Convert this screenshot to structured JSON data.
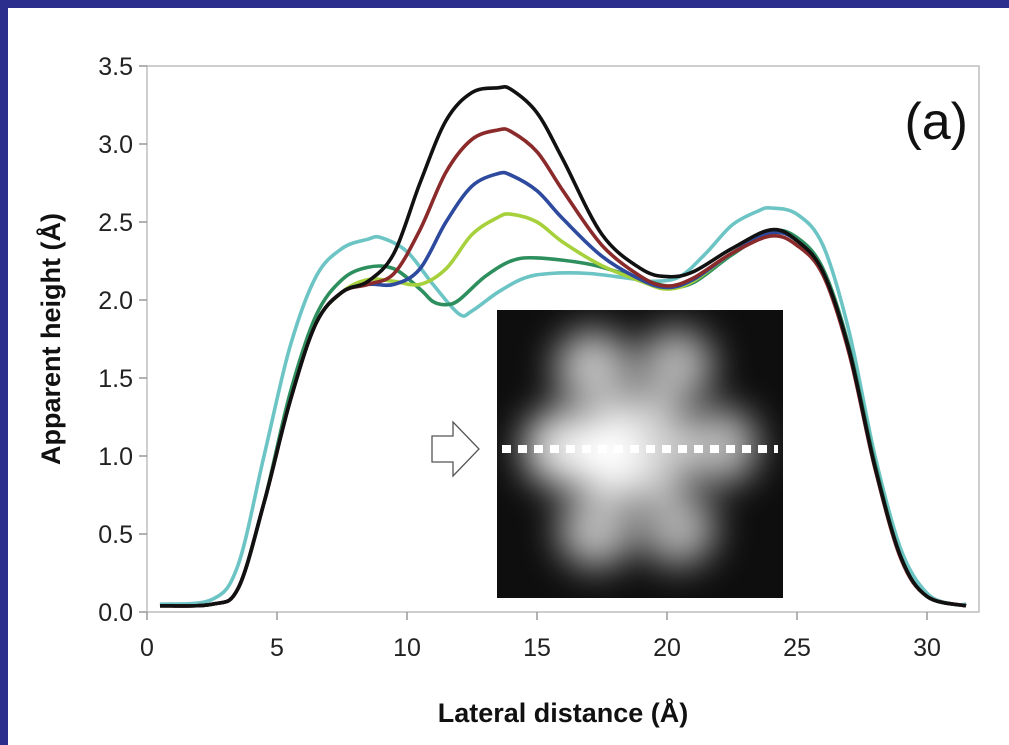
{
  "chart_data": {
    "type": "line",
    "xlabel": "Lateral distance (Å)",
    "ylabel": "Apparent height (Å)",
    "panel_label": "(a)",
    "xlim": [
      0,
      32
    ],
    "ylim": [
      0,
      3.5
    ],
    "xticks": [
      "0",
      "5",
      "10",
      "15",
      "20",
      "25",
      "30"
    ],
    "yticks": [
      "0.0",
      "0.5",
      "1.0",
      "1.5",
      "2.0",
      "2.5",
      "3.0",
      "3.5"
    ],
    "grid": false,
    "legend": "none",
    "series": [
      {
        "color": "#6cc4c4",
        "x": [
          0.5,
          2.5,
          3.5,
          4.5,
          5.5,
          6.5,
          7.5,
          8.5,
          9.0,
          10.0,
          11.0,
          12.0,
          12.5,
          13.5,
          14.5,
          15.5,
          17.0,
          18.5,
          19.5,
          20.5,
          21.5,
          22.5,
          23.5,
          24.0,
          25.0,
          26.0,
          27.0,
          28.0,
          29.0,
          30.0,
          31.0,
          31.5
        ],
        "y": [
          0.05,
          0.08,
          0.3,
          1.0,
          1.7,
          2.15,
          2.33,
          2.39,
          2.4,
          2.31,
          2.1,
          1.91,
          1.93,
          2.05,
          2.14,
          2.17,
          2.17,
          2.14,
          2.12,
          2.15,
          2.3,
          2.48,
          2.57,
          2.59,
          2.55,
          2.35,
          1.8,
          1.0,
          0.4,
          0.12,
          0.05,
          0.05
        ]
      },
      {
        "color": "#2e8f5e",
        "x": [
          0.5,
          2.5,
          3.5,
          4.5,
          5.5,
          6.5,
          7.5,
          8.5,
          9.5,
          10.5,
          11.0,
          11.5,
          12.0,
          13.0,
          14.0,
          15.0,
          17.0,
          18.5,
          20.0,
          21.0,
          22.5,
          24.0,
          25.0,
          26.0,
          27.0,
          28.0,
          29.0,
          30.0,
          31.5
        ],
        "y": [
          0.04,
          0.05,
          0.15,
          0.7,
          1.4,
          1.9,
          2.13,
          2.21,
          2.2,
          2.07,
          1.99,
          1.97,
          2.0,
          2.15,
          2.25,
          2.27,
          2.23,
          2.16,
          2.09,
          2.11,
          2.29,
          2.44,
          2.4,
          2.2,
          1.7,
          0.95,
          0.35,
          0.1,
          0.04
        ]
      },
      {
        "color": "#a6d13c",
        "x": [
          0.5,
          2.5,
          3.5,
          4.5,
          5.5,
          6.5,
          7.5,
          8.5,
          9.5,
          10.5,
          11.5,
          12.5,
          13.5,
          14.0,
          15.0,
          16.0,
          17.5,
          19.0,
          20.0,
          21.0,
          22.5,
          24.0,
          25.0,
          26.0,
          27.0,
          28.0,
          29.0,
          30.0,
          31.5
        ],
        "y": [
          0.04,
          0.05,
          0.15,
          0.7,
          1.35,
          1.85,
          2.05,
          2.13,
          2.12,
          2.1,
          2.2,
          2.42,
          2.53,
          2.55,
          2.5,
          2.37,
          2.22,
          2.12,
          2.07,
          2.12,
          2.3,
          2.43,
          2.38,
          2.18,
          1.68,
          0.93,
          0.35,
          0.1,
          0.04
        ]
      },
      {
        "color": "#2d4a9e",
        "x": [
          0.5,
          2.5,
          3.5,
          4.5,
          5.5,
          6.5,
          7.5,
          8.5,
          9.5,
          10.5,
          11.5,
          12.5,
          13.5,
          14.0,
          15.0,
          16.0,
          17.5,
          19.0,
          20.0,
          21.0,
          22.5,
          24.0,
          25.0,
          26.0,
          27.0,
          28.0,
          29.0,
          30.0,
          31.5
        ],
        "y": [
          0.04,
          0.05,
          0.15,
          0.7,
          1.35,
          1.85,
          2.05,
          2.1,
          2.1,
          2.2,
          2.5,
          2.73,
          2.81,
          2.8,
          2.7,
          2.52,
          2.28,
          2.13,
          2.08,
          2.13,
          2.3,
          2.43,
          2.38,
          2.18,
          1.68,
          0.93,
          0.35,
          0.1,
          0.04
        ]
      },
      {
        "color": "#8b2a2a",
        "x": [
          0.5,
          2.5,
          3.5,
          4.5,
          5.5,
          6.5,
          7.5,
          8.5,
          9.5,
          10.5,
          11.5,
          12.5,
          13.5,
          14.0,
          15.0,
          16.0,
          17.5,
          19.0,
          20.0,
          21.0,
          22.5,
          24.0,
          25.0,
          26.0,
          27.0,
          28.0,
          29.0,
          30.0,
          31.5
        ],
        "y": [
          0.04,
          0.05,
          0.15,
          0.7,
          1.35,
          1.85,
          2.05,
          2.1,
          2.17,
          2.45,
          2.82,
          3.03,
          3.09,
          3.08,
          2.95,
          2.7,
          2.35,
          2.15,
          2.09,
          2.14,
          2.3,
          2.41,
          2.35,
          2.16,
          1.66,
          0.92,
          0.34,
          0.1,
          0.04
        ]
      },
      {
        "color": "#111111",
        "x": [
          0.5,
          2.5,
          3.5,
          4.5,
          5.5,
          6.5,
          7.5,
          8.5,
          9.5,
          10.5,
          11.5,
          12.5,
          13.5,
          14.0,
          15.0,
          16.0,
          17.5,
          19.0,
          20.0,
          21.0,
          22.5,
          24.0,
          25.0,
          26.0,
          27.0,
          28.0,
          29.0,
          30.0,
          31.5
        ],
        "y": [
          0.04,
          0.05,
          0.15,
          0.7,
          1.35,
          1.85,
          2.05,
          2.12,
          2.3,
          2.75,
          3.15,
          3.33,
          3.36,
          3.35,
          3.2,
          2.9,
          2.42,
          2.2,
          2.15,
          2.18,
          2.33,
          2.45,
          2.38,
          2.18,
          1.68,
          0.93,
          0.35,
          0.1,
          0.04
        ]
      }
    ]
  }
}
